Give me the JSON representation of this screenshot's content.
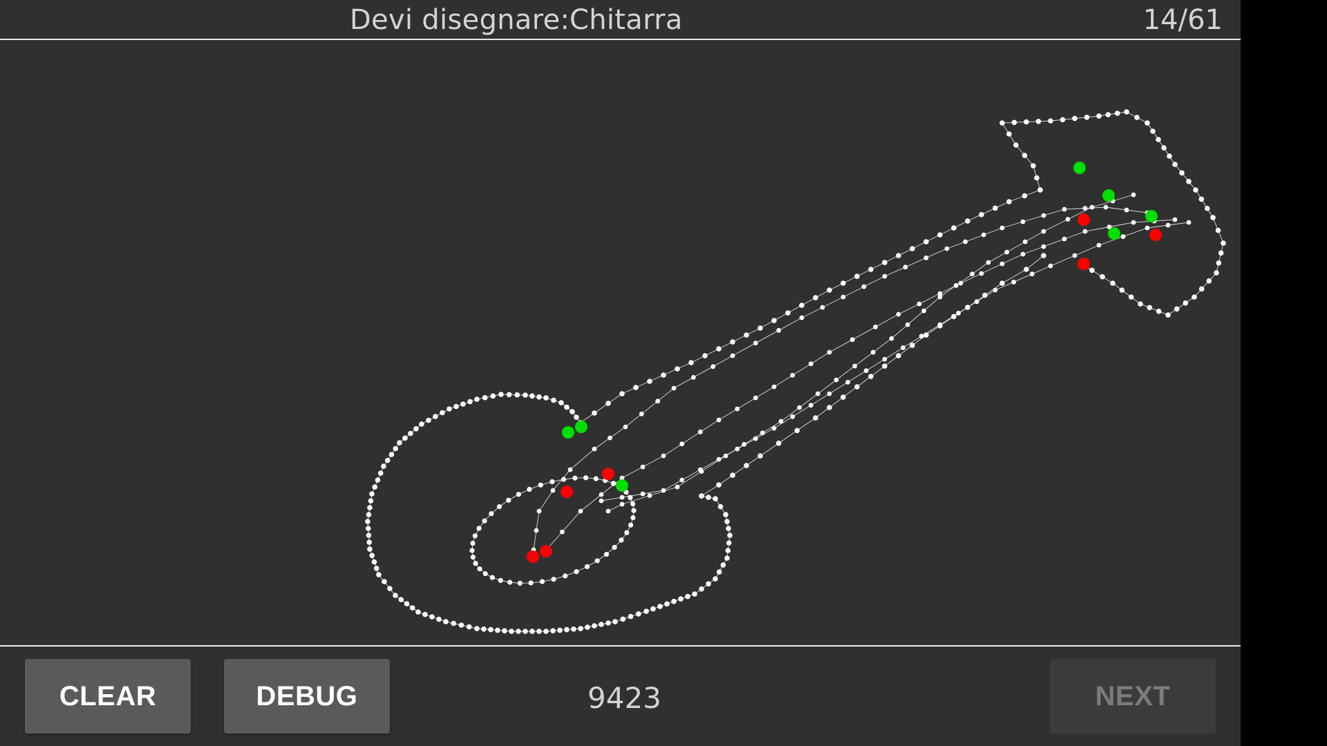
{
  "header": {
    "prompt_label": "Devi disegnare:",
    "prompt_word": "Chitarra",
    "progress": "14/61"
  },
  "footer": {
    "clear_label": "CLEAR",
    "debug_label": "DEBUG",
    "score": "9423",
    "next_label": "NEXT"
  },
  "colors": {
    "background": "#303030",
    "stroke": "#ffffff",
    "stroke_start": "#00e000",
    "stroke_end": "#ff0000"
  }
}
